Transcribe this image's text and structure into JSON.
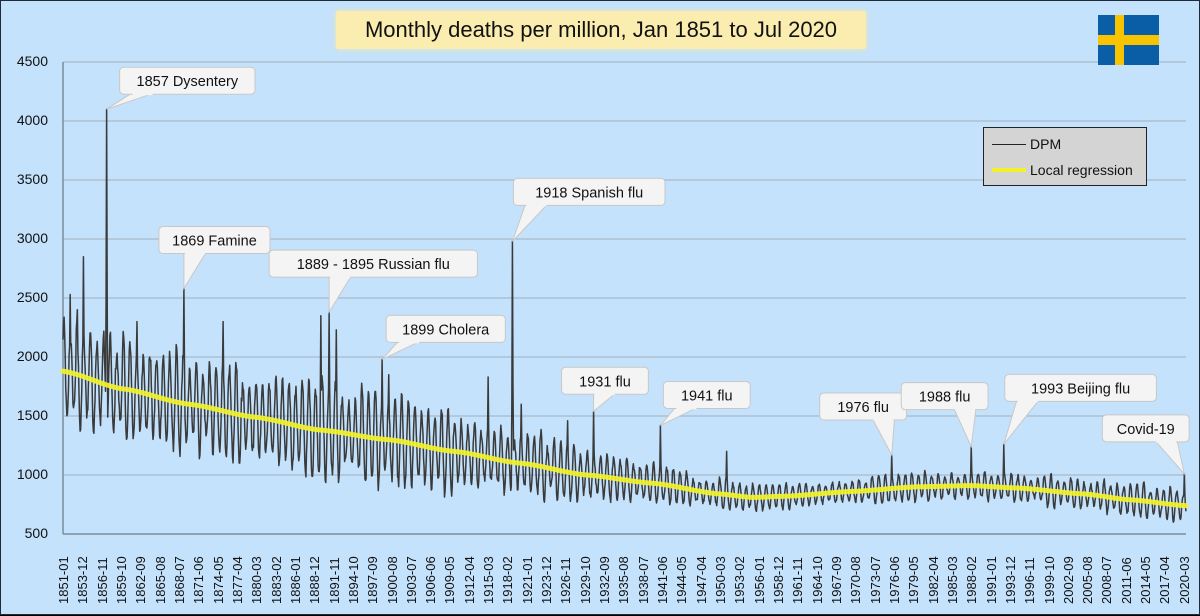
{
  "chart_data": {
    "type": "line",
    "title": "Monthly deaths per million, Jan 1851 to Jul 2020",
    "xlabel": "",
    "ylabel": "",
    "ylim": [
      500,
      4500
    ],
    "yticks": [
      500,
      1000,
      1500,
      2000,
      2500,
      3000,
      3500,
      4000,
      4500
    ],
    "grid": true,
    "legend_position": "top-right",
    "x_start": "1851-01",
    "x_end": "2020-07",
    "xtick_labels": [
      "1851-01",
      "1853-12",
      "1856-11",
      "1859-10",
      "1862-09",
      "1865-08",
      "1868-07",
      "1871-06",
      "1874-05",
      "1877-04",
      "1880-03",
      "1883-02",
      "1886-01",
      "1888-12",
      "1891-11",
      "1894-10",
      "1897-09",
      "1900-08",
      "1903-07",
      "1906-06",
      "1909-05",
      "1912-04",
      "1915-03",
      "1918-02",
      "1921-01",
      "1923-12",
      "1926-11",
      "1929-10",
      "1932-09",
      "1935-08",
      "1938-07",
      "1941-06",
      "1944-05",
      "1947-04",
      "1950-03",
      "1953-02",
      "1956-01",
      "1958-12",
      "1961-11",
      "1964-10",
      "1967-09",
      "1970-08",
      "1973-07",
      "1976-06",
      "1979-05",
      "1982-04",
      "1985-03",
      "1988-02",
      "1991-01",
      "1993-12",
      "1996-11",
      "1999-10",
      "2002-09",
      "2005-08",
      "2008-07",
      "2011-06",
      "2014-05",
      "2017-04",
      "2020-03"
    ],
    "series": [
      {
        "name": "DPM",
        "color": "#3a3a3a",
        "description": "Monthly deaths per million with strong seasonal oscillation",
        "seasonal_amplitude_by_year": [
          [
            1851,
            350
          ],
          [
            1900,
            300
          ],
          [
            1920,
            230
          ],
          [
            1945,
            120
          ],
          [
            1960,
            80
          ],
          [
            2020,
            110
          ]
        ],
        "peaks": [
          {
            "date": "1852-02",
            "value": 2530
          },
          {
            "date": "1853-03",
            "value": 2400
          },
          {
            "date": "1854-02",
            "value": 2850
          },
          {
            "date": "1857-08",
            "value": 4100
          },
          {
            "date": "1862-03",
            "value": 2300
          },
          {
            "date": "1869-04",
            "value": 2580
          },
          {
            "date": "1875-03",
            "value": 2300
          },
          {
            "date": "1889-12",
            "value": 2350
          },
          {
            "date": "1891-03",
            "value": 2380
          },
          {
            "date": "1892-04",
            "value": 2230
          },
          {
            "date": "1899-03",
            "value": 1980
          },
          {
            "date": "1900-03",
            "value": 1850
          },
          {
            "date": "1915-03",
            "value": 1830
          },
          {
            "date": "1918-11",
            "value": 2980
          },
          {
            "date": "1920-03",
            "value": 1600
          },
          {
            "date": "1927-03",
            "value": 1460
          },
          {
            "date": "1931-02",
            "value": 1540
          },
          {
            "date": "1941-03",
            "value": 1420
          },
          {
            "date": "1951-03",
            "value": 1200
          },
          {
            "date": "1976-02",
            "value": 1170
          },
          {
            "date": "1988-02",
            "value": 1240
          },
          {
            "date": "1993-01",
            "value": 1260
          },
          {
            "date": "2020-04",
            "value": 1010
          }
        ]
      },
      {
        "name": "Local regression",
        "color": "#f2f22a",
        "points": [
          {
            "date": "1851-01",
            "value": 1880
          },
          {
            "date": "1860-01",
            "value": 1730
          },
          {
            "date": "1870-01",
            "value": 1600
          },
          {
            "date": "1880-01",
            "value": 1490
          },
          {
            "date": "1890-01",
            "value": 1380
          },
          {
            "date": "1900-01",
            "value": 1300
          },
          {
            "date": "1910-01",
            "value": 1200
          },
          {
            "date": "1920-01",
            "value": 1100
          },
          {
            "date": "1930-01",
            "value": 1000
          },
          {
            "date": "1940-01",
            "value": 930
          },
          {
            "date": "1950-01",
            "value": 840
          },
          {
            "date": "1955-01",
            "value": 810
          },
          {
            "date": "1960-01",
            "value": 820
          },
          {
            "date": "1970-01",
            "value": 860
          },
          {
            "date": "1980-01",
            "value": 900
          },
          {
            "date": "1988-01",
            "value": 910
          },
          {
            "date": "1995-01",
            "value": 890
          },
          {
            "date": "2005-01",
            "value": 840
          },
          {
            "date": "2012-01",
            "value": 790
          },
          {
            "date": "2020-07",
            "value": 740
          }
        ]
      }
    ],
    "annotations": [
      {
        "label": "1857 Dysentery",
        "date": "1857-08",
        "value": 4100
      },
      {
        "label": "1869 Famine",
        "date": "1869-04",
        "value": 2580
      },
      {
        "label": "1889 - 1895 Russian flu",
        "date": "1891-03",
        "value": 2380
      },
      {
        "label": "1899 Cholera",
        "date": "1899-03",
        "value": 1980
      },
      {
        "label": "1918 Spanish flu",
        "date": "1918-11",
        "value": 2980
      },
      {
        "label": "1931 flu",
        "date": "1931-02",
        "value": 1540
      },
      {
        "label": "1941 flu",
        "date": "1941-03",
        "value": 1420
      },
      {
        "label": "1976 flu",
        "date": "1976-02",
        "value": 1170
      },
      {
        "label": "1988 flu",
        "date": "1988-02",
        "value": 1240
      },
      {
        "label": "1993 Beijing flu",
        "date": "1993-01",
        "value": 1260
      },
      {
        "label": "Covid-19",
        "date": "2020-04",
        "value": 1010
      }
    ]
  },
  "legend": {
    "items": [
      {
        "label": "DPM",
        "color": "#3a3a3a"
      },
      {
        "label": "Local regression",
        "color": "#f2f22a"
      }
    ]
  },
  "flag": {
    "country": "Sweden",
    "colors": [
      "#0a5ea5",
      "#f8c300"
    ]
  }
}
